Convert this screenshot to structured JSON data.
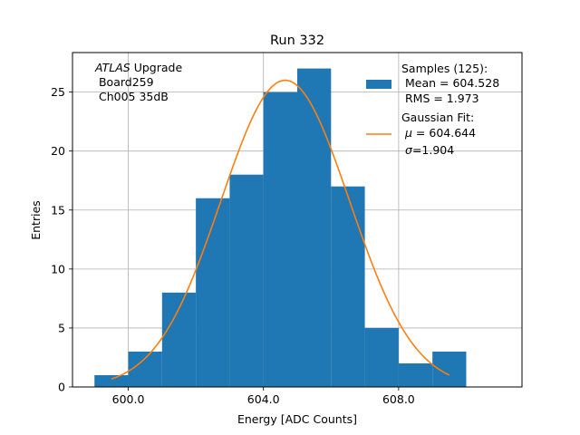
{
  "chart_data": {
    "type": "bar",
    "title": "Run 332",
    "xlabel": "Energy [ADC Counts]",
    "ylabel": "Entries",
    "xlim": [
      598.35,
      611.65
    ],
    "ylim": [
      0,
      28.35
    ],
    "xticks": [
      {
        "value": 600,
        "label": "600.0"
      },
      {
        "value": 604,
        "label": "604.0"
      },
      {
        "value": 608,
        "label": "608.0"
      }
    ],
    "yticks": [
      {
        "value": 0,
        "label": "0"
      },
      {
        "value": 5,
        "label": "5"
      },
      {
        "value": 10,
        "label": "10"
      },
      {
        "value": 15,
        "label": "15"
      },
      {
        "value": 20,
        "label": "20"
      },
      {
        "value": 25,
        "label": "25"
      }
    ],
    "grid": true,
    "bins": [
      {
        "x0": 599,
        "x1": 600,
        "count": 1
      },
      {
        "x0": 600,
        "x1": 601,
        "count": 3
      },
      {
        "x0": 601,
        "x1": 602,
        "count": 8
      },
      {
        "x0": 602,
        "x1": 603,
        "count": 16
      },
      {
        "x0": 603,
        "x1": 604,
        "count": 18
      },
      {
        "x0": 604,
        "x1": 605,
        "count": 25
      },
      {
        "x0": 605,
        "x1": 606,
        "count": 27
      },
      {
        "x0": 606,
        "x1": 607,
        "count": 17
      },
      {
        "x0": 607,
        "x1": 608,
        "count": 5
      },
      {
        "x0": 608,
        "x1": 609,
        "count": 2
      },
      {
        "x0": 609,
        "x1": 610,
        "count": 3
      }
    ],
    "fit": {
      "mu": 604.644,
      "sigma": 1.904,
      "amplitude": 26.0,
      "x_range": [
        599.5,
        609.5
      ]
    },
    "bar_color": "#1f77b4",
    "fit_color": "#ff7f0e",
    "annotation": {
      "italic": "ATLAS",
      "line1_rest": " Upgrade",
      "line2": " Board259",
      "line3": " Ch005 35dB"
    },
    "legend": {
      "position": "top-right",
      "samples": {
        "line1": "Samples (125):",
        "line2": " Mean = 604.528",
        "line3": " RMS = 1.973"
      },
      "fit": {
        "line1": "Gaussian Fit:",
        "line2_sym": "μ",
        "line2_rest": " = 604.644",
        "line3_sym": "σ",
        "line3_rest": "=1.904"
      }
    }
  }
}
